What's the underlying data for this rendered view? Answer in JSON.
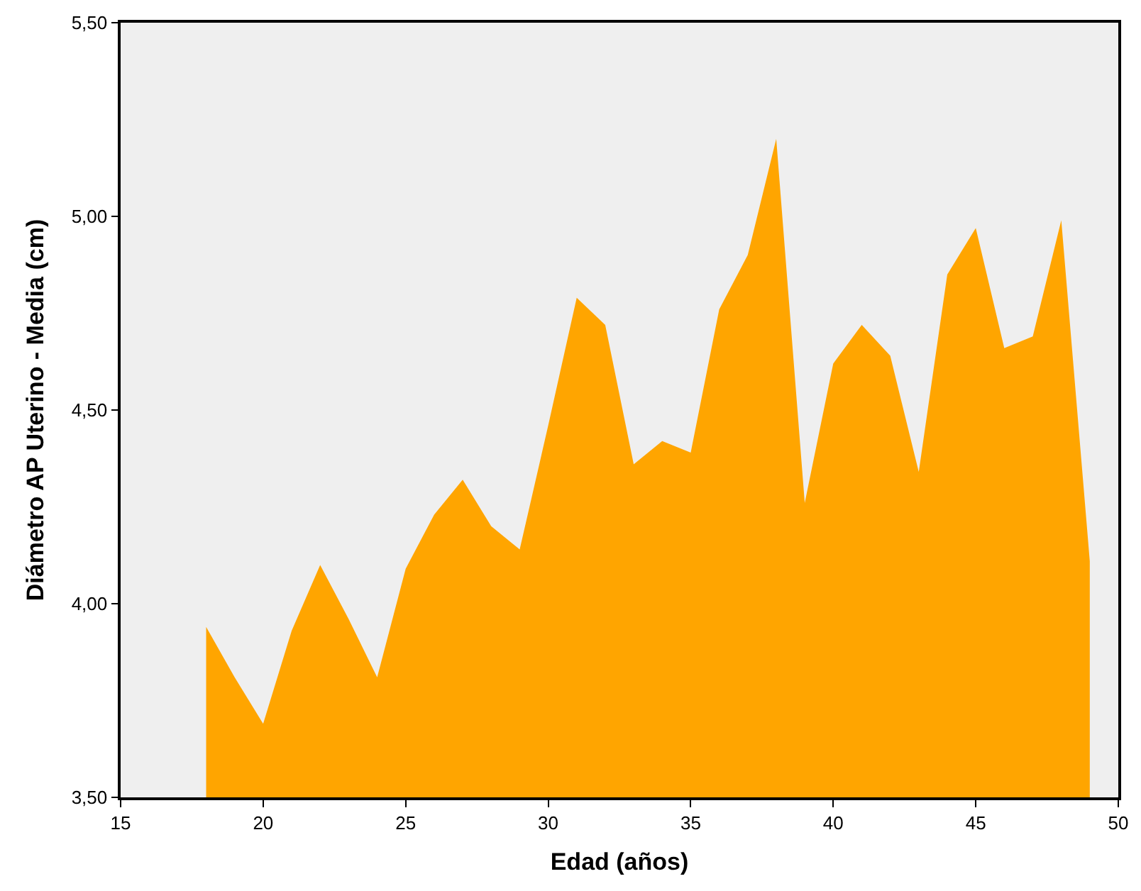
{
  "chart_data": {
    "type": "area",
    "xlabel": "Edad (años)",
    "ylabel": "Diámetro AP Uterino - Media (cm)",
    "x": [
      18,
      19,
      20,
      21,
      22,
      23,
      24,
      25,
      26,
      27,
      28,
      29,
      30,
      31,
      32,
      33,
      34,
      35,
      36,
      37,
      38,
      39,
      40,
      41,
      42,
      43,
      44,
      45,
      46,
      47,
      48,
      49
    ],
    "series": [
      {
        "color": "#ffa500",
        "values": [
          3.94,
          3.81,
          3.69,
          3.93,
          4.1,
          3.96,
          3.81,
          4.09,
          4.23,
          4.32,
          4.2,
          4.14,
          4.46,
          4.79,
          4.72,
          4.36,
          4.42,
          4.39,
          4.76,
          4.9,
          5.2,
          4.26,
          4.62,
          4.72,
          4.64,
          4.34,
          4.85,
          4.97,
          4.66,
          4.69,
          4.99,
          4.11
        ]
      }
    ],
    "xlim": [
      15,
      50
    ],
    "xticks": [
      15,
      20,
      25,
      30,
      35,
      40,
      45,
      50
    ],
    "ylim": [
      3.5,
      5.5
    ],
    "yticks": [
      {
        "value": 3.5,
        "label": "3,50"
      },
      {
        "value": 4.0,
        "label": "4,00"
      },
      {
        "value": 4.5,
        "label": "4,50"
      },
      {
        "value": 5.0,
        "label": "5,00"
      },
      {
        "value": 5.5,
        "label": "5,50"
      }
    ],
    "grid": false
  }
}
